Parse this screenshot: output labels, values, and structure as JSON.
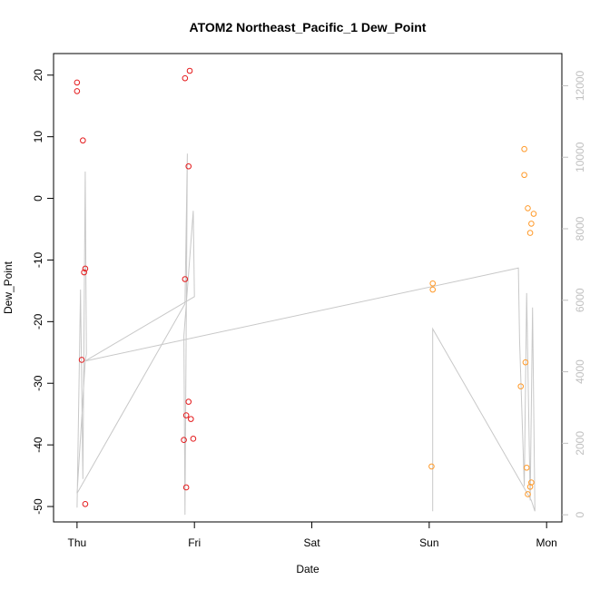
{
  "chart_data": {
    "type": "scatter",
    "title": "ATOM2 Northeast_Pacific_1 Dew_Point",
    "xlabel": "Date",
    "ylabel": "Dew_Point",
    "x_ticks": [
      "Thu",
      "Fri",
      "Sat",
      "Sun",
      "Mon"
    ],
    "x_range_days": [
      -0.2,
      4.13
    ],
    "ylim": [
      -52.5,
      23.5
    ],
    "y_ticks": [
      -50,
      -40,
      -30,
      -20,
      -10,
      0,
      10,
      20
    ],
    "y2lim": [
      -200,
      12900
    ],
    "y2_ticks": [
      0,
      2000,
      4000,
      6000,
      8000,
      10000,
      12000
    ],
    "grid": false,
    "colors": {
      "series_1": "#e41a1c",
      "series_2": "#ff9a2a",
      "line": "#c8c8c8",
      "right_axis": "#c0c0c0"
    },
    "series": [
      {
        "axis": "left",
        "color": "#e41a1c",
        "points": [
          {
            "x": 0.0,
            "y": 18.8
          },
          {
            "x": 0.0,
            "y": 17.4
          },
          {
            "x": 0.05,
            "y": 9.4
          },
          {
            "x": 0.04,
            "y": -26.2
          },
          {
            "x": 0.06,
            "y": -12.0
          },
          {
            "x": 0.07,
            "y": -11.4
          },
          {
            "x": 0.07,
            "y": -49.6
          },
          {
            "x": 0.92,
            "y": 19.5
          },
          {
            "x": 0.96,
            "y": 20.7
          },
          {
            "x": 0.95,
            "y": 5.2
          },
          {
            "x": 0.92,
            "y": -13.1
          },
          {
            "x": 0.95,
            "y": -33.0
          },
          {
            "x": 0.93,
            "y": -35.2
          },
          {
            "x": 0.97,
            "y": -35.8
          },
          {
            "x": 0.99,
            "y": -39.0
          },
          {
            "x": 0.91,
            "y": -39.2
          },
          {
            "x": 0.93,
            "y": -46.9
          }
        ]
      },
      {
        "axis": "left",
        "color": "#ff9a2a",
        "points": [
          {
            "x": 3.03,
            "y": -13.8
          },
          {
            "x": 3.03,
            "y": -14.8
          },
          {
            "x": 3.02,
            "y": -43.5
          },
          {
            "x": 3.81,
            "y": 8.0
          },
          {
            "x": 3.81,
            "y": 3.8
          },
          {
            "x": 3.84,
            "y": -1.6
          },
          {
            "x": 3.89,
            "y": -2.5
          },
          {
            "x": 3.87,
            "y": -4.1
          },
          {
            "x": 3.86,
            "y": -5.6
          },
          {
            "x": 3.82,
            "y": -26.6
          },
          {
            "x": 3.78,
            "y": -30.5
          },
          {
            "x": 3.83,
            "y": -43.7
          },
          {
            "x": 3.87,
            "y": -46.1
          },
          {
            "x": 3.86,
            "y": -46.8
          },
          {
            "x": 3.84,
            "y": -48.0
          }
        ]
      },
      {
        "type": "line",
        "axis": "right",
        "color": "#c8c8c8",
        "points": [
          {
            "x": 0.0,
            "y": 200
          },
          {
            "x": 0.03,
            "y": 6300
          },
          {
            "x": 0.05,
            "y": 1000
          },
          {
            "x": 0.07,
            "y": 9600
          },
          {
            "x": 0.08,
            "y": 4500
          },
          {
            "x": 0.07,
            "y": 4300
          },
          {
            "x": 0.0,
            "y": 600
          },
          {
            "x": 0.92,
            "y": 5900
          },
          {
            "x": 0.94,
            "y": 10100
          },
          {
            "x": 0.92,
            "y": 0
          },
          {
            "x": 0.91,
            "y": 5000
          },
          {
            "x": 0.99,
            "y": 8500
          },
          {
            "x": 1.0,
            "y": 6100
          },
          {
            "x": 0.07,
            "y": 4300
          },
          {
            "x": 3.76,
            "y": 6900
          },
          {
            "x": 3.77,
            "y": 4900
          },
          {
            "x": 3.81,
            "y": 800
          },
          {
            "x": 3.83,
            "y": 6200
          },
          {
            "x": 3.86,
            "y": 400
          },
          {
            "x": 3.88,
            "y": 5800
          },
          {
            "x": 3.9,
            "y": 100
          },
          {
            "x": 3.87,
            "y": 400
          },
          {
            "x": 3.03,
            "y": 5200
          },
          {
            "x": 3.03,
            "y": 100
          }
        ]
      }
    ]
  }
}
